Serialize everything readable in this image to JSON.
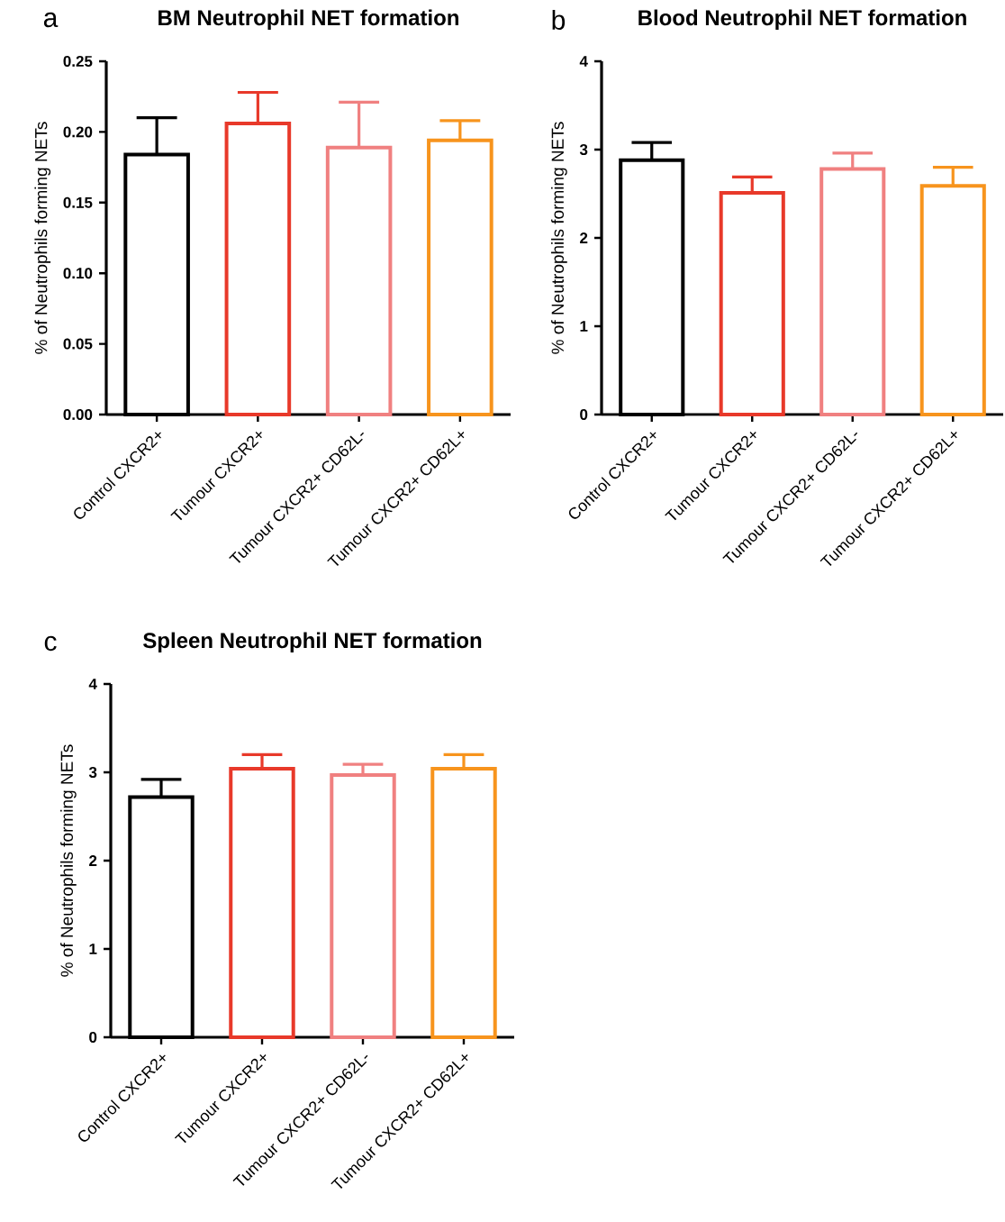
{
  "chart_data": [
    {
      "type": "bar",
      "title": "BM Neutrophil NET formation",
      "ylabel": "% of Neutrophils forming NETs",
      "annotations": [
        "a"
      ],
      "categories": [
        "Control CXCR2+",
        "Tumour CXCR2+",
        "Tumour CXCR2+ CD62L-",
        "Tumour CXCR2+ CD62L+"
      ],
      "values": [
        0.184,
        0.206,
        0.189,
        0.194
      ],
      "errors": [
        [
          0.184,
          0.21
        ],
        [
          0.206,
          0.228
        ],
        [
          0.189,
          0.221
        ],
        [
          0.194,
          0.208
        ]
      ],
      "colors": [
        "#000000",
        "#e8392a",
        "#f08080",
        "#f7941d"
      ],
      "ylim": [
        0,
        0.25
      ],
      "yticks": [
        {
          "value": 0,
          "label": "0.00"
        },
        {
          "value": 0.05,
          "label": "0.05"
        },
        {
          "value": 0.1,
          "label": "0.10"
        },
        {
          "value": 0.15,
          "label": "0.15"
        },
        {
          "value": 0.2,
          "label": "0.20"
        },
        {
          "value": 0.25,
          "label": "0.25"
        }
      ]
    },
    {
      "type": "bar",
      "title": "Blood Neutrophil NET formation",
      "ylabel": "% of Neutrophils forming NETs",
      "annotations": [
        "b"
      ],
      "categories": [
        "Control CXCR2+",
        "Tumour CXCR2+",
        "Tumour CXCR2+ CD62L-",
        "Tumour CXCR2+ CD62L+"
      ],
      "values": [
        2.88,
        2.51,
        2.78,
        2.59
      ],
      "errors": [
        [
          2.88,
          3.08
        ],
        [
          2.51,
          2.69
        ],
        [
          2.78,
          2.96
        ],
        [
          2.59,
          2.8
        ]
      ],
      "colors": [
        "#000000",
        "#e8392a",
        "#f08080",
        "#f7941d"
      ],
      "ylim": [
        0,
        4
      ],
      "yticks": [
        0,
        1,
        2,
        3,
        4
      ]
    },
    {
      "type": "bar",
      "title": "Spleen Neutrophil NET formation",
      "ylabel": "% of Neutrophils forming NETs",
      "annotations": [
        "c"
      ],
      "categories": [
        "Control CXCR2+",
        "Tumour CXCR2+",
        "Tumour CXCR2+ CD62L-",
        "Tumour CXCR2+ CD62L+"
      ],
      "values": [
        2.72,
        3.04,
        2.97,
        3.04
      ],
      "errors": [
        [
          2.72,
          2.92
        ],
        [
          3.04,
          3.2
        ],
        [
          2.97,
          3.09
        ],
        [
          3.04,
          3.2
        ]
      ],
      "colors": [
        "#000000",
        "#e8392a",
        "#f08080",
        "#f7941d"
      ],
      "ylim": [
        0,
        4
      ],
      "yticks": [
        0,
        1,
        2,
        3,
        4
      ]
    }
  ]
}
